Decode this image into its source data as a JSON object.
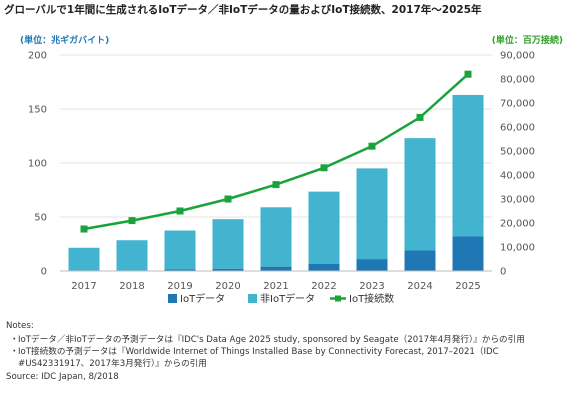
{
  "title": "グローバルで1年間に生成されるIoTデータ／非IoTデータの量およびIoT接続数、2017年～2025年",
  "unit_left": "(単位：兆ギガバイト)",
  "unit_right": "(単位：百万接続)",
  "colors": {
    "iot": "#1f78b4",
    "non_iot": "#42b4cf",
    "connections": "#1aa33a",
    "left_axis": "#1f78b4",
    "right_axis": "#33a02c",
    "grid": "#e3e3e3"
  },
  "chart_data": {
    "type": "bar",
    "stacked": true,
    "categories": [
      "2017",
      "2018",
      "2019",
      "2020",
      "2021",
      "2022",
      "2023",
      "2024",
      "2025"
    ],
    "series": [
      {
        "name": "IoTデータ",
        "type": "bar",
        "axis": "left",
        "values": [
          0.5,
          0.5,
          1.5,
          2,
          4,
          6.5,
          11,
          19,
          32
        ]
      },
      {
        "name": "非IoTデータ",
        "type": "bar",
        "axis": "left",
        "values": [
          21,
          28,
          36,
          46,
          55,
          67,
          84,
          104,
          131
        ]
      },
      {
        "name": "IoT接続数",
        "type": "line",
        "axis": "right",
        "values": [
          17500,
          21000,
          25000,
          30000,
          36000,
          43000,
          52000,
          64000,
          82000
        ]
      }
    ],
    "ylim_left": [
      0,
      200
    ],
    "yticks_left": [
      0,
      50,
      100,
      150,
      200
    ],
    "ylim_right": [
      0,
      90000
    ],
    "yticks_right": [
      "0",
      "10,000",
      "20,000",
      "30,000",
      "40,000",
      "50,000",
      "60,000",
      "70,000",
      "80,000",
      "90,000"
    ],
    "grid": true,
    "legend_position": "bottom"
  },
  "legend": [
    "IoTデータ",
    "非IoTデータ",
    "IoT接続数"
  ],
  "notes": {
    "head": "Notes:",
    "items": [
      "IoTデータ／非IoTデータの予測データは『IDC's Data Age 2025 study, sponsored by Seagate（2017年4月発行）』からの引用",
      "IoT接続数の予測データは『Worldwide Internet of Things Installed Base by Connectivity Forecast, 2017–2021（IDC #US42331917、2017年3月発行）』からの引用"
    ],
    "bullet": "・",
    "source": "Source: IDC Japan, 8/2018"
  }
}
